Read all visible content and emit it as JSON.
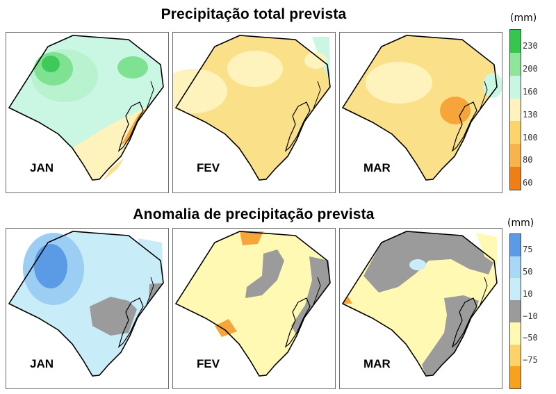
{
  "top": {
    "title": "Precipitação total prevista",
    "unit": "(mm)",
    "months": [
      "JAN",
      "FEV",
      "MAR"
    ],
    "ticks": [
      "230",
      "200",
      "160",
      "130",
      "100",
      "80",
      "60"
    ],
    "scale_colors": [
      "#36c64f",
      "#8fe59a",
      "#c9f6e3",
      "#fff3bd",
      "#fbd46b",
      "#f7b44d",
      "#f07e16"
    ]
  },
  "bottom": {
    "title": "Anomalia de precipitação prevista",
    "unit": "(mm)",
    "months": [
      "JAN",
      "FEV",
      "MAR"
    ],
    "ticks": [
      "75",
      "50",
      "10",
      "−10",
      "−50",
      "−75"
    ],
    "scale_colors": [
      "#5b9be6",
      "#a9d8f7",
      "#c9ecf9",
      "#9b9b9b",
      "#fff9b4",
      "#fbd36a",
      "#f7a21f"
    ]
  },
  "colors": {
    "green_dark": "#3fc95a",
    "green_mid": "#7fe192",
    "green_light": "#b8f2ce",
    "mint": "#c9f7e4",
    "cream": "#fff3bd",
    "yellow": "#fbe08a",
    "orange_light": "#f8c25a",
    "orange": "#f5a53a",
    "blue_dark": "#5b9be6",
    "blue_mid": "#9ccdf3",
    "blue_light": "#c9ecf9",
    "gray": "#9b9b9b",
    "pale_yellow": "#fff9b4"
  }
}
